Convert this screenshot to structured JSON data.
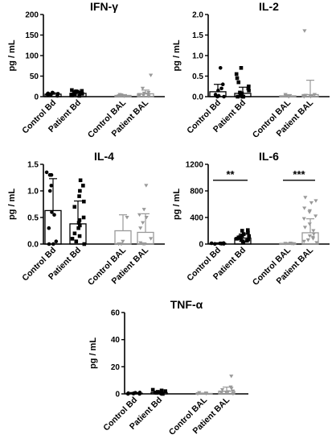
{
  "chart_data": [
    {
      "type": "scatter",
      "title": "IFN-γ",
      "ylabel": "pg / mL",
      "ylim": [
        0,
        200
      ],
      "yticks": [
        "0",
        "50",
        "100",
        "150",
        "200"
      ],
      "categories": [
        "Control Bd",
        "Patient Bd",
        "Control BAL",
        "Patient BAL"
      ],
      "groups": [
        {
          "name": "Control Bd",
          "color": "#000000",
          "marker": "circle",
          "mean": 6,
          "sd": 3,
          "points": [
            2,
            4,
            5,
            6,
            7,
            8,
            9,
            10
          ]
        },
        {
          "name": "Patient Bd",
          "color": "#000000",
          "marker": "square",
          "mean": 8,
          "sd": 5,
          "points": [
            2,
            3,
            4,
            5,
            6,
            7,
            8,
            9,
            10,
            11,
            12,
            13,
            14,
            16
          ]
        },
        {
          "name": "Control BAL",
          "color": "#999999",
          "marker": "triangle-down",
          "mean": 3,
          "sd": 2,
          "points": [
            1,
            2,
            3,
            4,
            5
          ]
        },
        {
          "name": "Patient BAL",
          "color": "#999999",
          "marker": "triangle-down",
          "mean": 7,
          "sd": 9,
          "points": [
            1,
            2,
            3,
            4,
            5,
            6,
            8,
            10,
            20,
            52
          ]
        }
      ],
      "significance": []
    },
    {
      "type": "scatter",
      "title": "IL-2",
      "ylabel": "pg / mL",
      "ylim": [
        0,
        2.0
      ],
      "yticks": [
        "0.0",
        "0.5",
        "1.0",
        "1.5",
        "2.0"
      ],
      "categories": [
        "Control Bd",
        "Patient Bd",
        "Control BAL",
        "Patient BAL"
      ],
      "groups": [
        {
          "name": "Control Bd",
          "color": "#000000",
          "marker": "circle",
          "mean": 0.12,
          "sd": 0.18,
          "points": [
            0.0,
            0.0,
            0.02,
            0.05,
            0.15,
            0.2,
            0.3,
            0.7
          ]
        },
        {
          "name": "Patient Bd",
          "color": "#000000",
          "marker": "square",
          "mean": 0.08,
          "sd": 0.15,
          "points": [
            0.0,
            0.0,
            0.0,
            0.02,
            0.05,
            0.08,
            0.1,
            0.15,
            0.2,
            0.25,
            0.35,
            0.45,
            0.55,
            0.7
          ]
        },
        {
          "name": "Control BAL",
          "color": "#999999",
          "marker": "triangle-down",
          "mean": 0.02,
          "sd": 0.03,
          "points": [
            0.0,
            0.0,
            0.02,
            0.05
          ]
        },
        {
          "name": "Patient BAL",
          "color": "#999999",
          "marker": "triangle-down",
          "mean": 0.05,
          "sd": 0.35,
          "points": [
            0.0,
            0.0,
            0.0,
            0.02,
            0.03,
            0.05,
            1.6
          ]
        }
      ],
      "significance": []
    },
    {
      "type": "scatter",
      "title": "IL-4",
      "ylabel": "pg / mL",
      "ylim": [
        0,
        1.5
      ],
      "yticks": [
        "0.0",
        "0.5",
        "1.0",
        "1.5"
      ],
      "categories": [
        "Control Bd",
        "Patient Bd",
        "Control BAL",
        "Patient BAL"
      ],
      "groups": [
        {
          "name": "Control Bd",
          "color": "#000000",
          "marker": "circle",
          "mean": 0.63,
          "sd": 0.6,
          "points": [
            0.0,
            0.0,
            0.05,
            0.3,
            0.55,
            0.6,
            1.0,
            1.1,
            1.3,
            1.35,
            1.3
          ]
        },
        {
          "name": "Patient Bd",
          "color": "#000000",
          "marker": "square",
          "mean": 0.38,
          "sd": 0.43,
          "points": [
            0.0,
            0.05,
            0.1,
            0.15,
            0.2,
            0.3,
            0.35,
            0.4,
            0.45,
            0.5,
            0.7,
            0.8,
            0.9,
            1.0,
            1.1,
            1.2
          ]
        },
        {
          "name": "Control BAL",
          "color": "#999999",
          "marker": "triangle-down",
          "mean": 0.25,
          "sd": 0.3,
          "points": [
            0.0,
            0.0,
            0.05,
            0.5
          ]
        },
        {
          "name": "Patient BAL",
          "color": "#999999",
          "marker": "triangle-down",
          "mean": 0.22,
          "sd": 0.35,
          "points": [
            0.0,
            0.0,
            0.02,
            0.1,
            0.3,
            0.4,
            0.5,
            0.55,
            0.65,
            1.1
          ]
        }
      ],
      "significance": []
    },
    {
      "type": "scatter",
      "title": "IL-6",
      "ylabel": "pg / mL",
      "ylim": [
        0,
        1200
      ],
      "yticks": [
        "0",
        "400",
        "800",
        "1200"
      ],
      "categories": [
        "Control Bd",
        "Patient Bd",
        "Control BAL",
        "Patient BAL"
      ],
      "groups": [
        {
          "name": "Control Bd",
          "color": "#000000",
          "marker": "circle",
          "mean": 10,
          "sd": 8,
          "points": [
            2,
            4,
            6,
            8,
            10,
            12,
            15
          ]
        },
        {
          "name": "Patient Bd",
          "color": "#000000",
          "marker": "square",
          "mean": 90,
          "sd": 60,
          "points": [
            20,
            40,
            50,
            60,
            70,
            80,
            90,
            100,
            110,
            120,
            130,
            150,
            170,
            200,
            210
          ]
        },
        {
          "name": "Control BAL",
          "color": "#999999",
          "marker": "triangle-down",
          "mean": 10,
          "sd": 5,
          "points": [
            3,
            5,
            8,
            12
          ]
        },
        {
          "name": "Patient BAL",
          "color": "#999999",
          "marker": "triangle-down",
          "mean": 170,
          "sd": 210,
          "points": [
            20,
            40,
            60,
            80,
            100,
            120,
            150,
            200,
            250,
            300,
            380,
            420,
            480,
            500,
            540,
            620,
            650,
            700
          ]
        }
      ],
      "significance": [
        {
          "label": "**",
          "from": "Control Bd",
          "to": "Patient Bd",
          "y": 960
        },
        {
          "label": "***",
          "from": "Control BAL",
          "to": "Patient BAL",
          "y": 960
        }
      ]
    },
    {
      "type": "scatter",
      "title": "TNF-α",
      "ylabel": "pg / mL",
      "ylim": [
        0,
        60
      ],
      "yticks": [
        "0",
        "20",
        "40",
        "60"
      ],
      "categories": [
        "Control Bd",
        "Patient Bd",
        "Control BAL",
        "Patient BAL"
      ],
      "groups": [
        {
          "name": "Control Bd",
          "color": "#000000",
          "marker": "circle",
          "mean": 0.5,
          "sd": 0.5,
          "points": [
            0,
            0,
            0.2,
            0.4,
            0.5,
            0.8,
            1
          ]
        },
        {
          "name": "Patient Bd",
          "color": "#000000",
          "marker": "square",
          "mean": 1,
          "sd": 1,
          "points": [
            0,
            0.2,
            0.5,
            0.8,
            1,
            1.2,
            1.5,
            2,
            2.5,
            3
          ]
        },
        {
          "name": "Control BAL",
          "color": "#999999",
          "marker": "triangle-down",
          "mean": 0.3,
          "sd": 0.3,
          "points": [
            0,
            0.2,
            0.5,
            0.8
          ]
        },
        {
          "name": "Patient BAL",
          "color": "#999999",
          "marker": "triangle-down",
          "mean": 2,
          "sd": 3,
          "points": [
            0,
            0.5,
            1,
            1.5,
            2,
            3,
            4,
            5,
            13
          ]
        }
      ],
      "significance": []
    }
  ]
}
